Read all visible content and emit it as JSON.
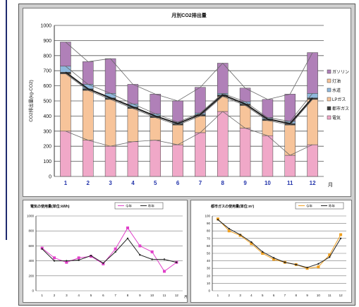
{
  "chart_data": [
    {
      "type": "bar",
      "stacked": true,
      "title": "月別CO2排出量",
      "ylabel": "CO2排出量(kg-CO2)",
      "x_unit": "月",
      "categories": [
        "1",
        "2",
        "3",
        "4",
        "5",
        "6",
        "7",
        "8",
        "9",
        "10",
        "11",
        "12"
      ],
      "ylim": [
        0,
        1000
      ],
      "yticks": [
        0,
        100,
        200,
        300,
        400,
        500,
        600,
        700,
        800,
        900,
        1000
      ],
      "legend_position": "right",
      "series": [
        {
          "name": "電気",
          "color": "#f0a8c8",
          "values": [
            300,
            240,
            200,
            230,
            240,
            210,
            290,
            430,
            320,
            270,
            140,
            210
          ]
        },
        {
          "name": "灯油",
          "color": "#f7c49a",
          "values": [
            380,
            330,
            310,
            220,
            150,
            130,
            110,
            100,
            150,
            100,
            200,
            300
          ]
        },
        {
          "name": "都市ガス",
          "color": "#3a3a3a",
          "values": [
            10,
            10,
            10,
            10,
            10,
            10,
            10,
            10,
            10,
            10,
            10,
            10
          ]
        },
        {
          "name": "LPガス",
          "color": "#f7c49a",
          "values": [
            0,
            0,
            0,
            0,
            0,
            0,
            0,
            0,
            0,
            0,
            0,
            0
          ]
        },
        {
          "name": "水道",
          "color": "#8fb8dc",
          "values": [
            40,
            30,
            30,
            20,
            15,
            10,
            10,
            10,
            15,
            10,
            15,
            30
          ]
        },
        {
          "name": "ガソリン",
          "color": "#b080b8",
          "values": [
            160,
            150,
            230,
            130,
            130,
            140,
            170,
            200,
            90,
            120,
            180,
            270
          ]
        }
      ],
      "legend_order": [
        "ガソリン",
        "灯油",
        "水道",
        "LPガス",
        "都市ガス",
        "電気"
      ]
    },
    {
      "type": "line",
      "title": "電気の使用量(単位:kWh)",
      "legend": [
        "今年",
        "昨年"
      ],
      "x": [
        "1",
        "2",
        "3",
        "4",
        "5",
        "6",
        "7",
        "8",
        "9",
        "10",
        "11",
        "12"
      ],
      "x_unit": "月",
      "ylim": [
        0,
        1000
      ],
      "yticks": [
        0,
        200,
        400,
        600,
        800,
        1000
      ],
      "series": [
        {
          "name": "今年",
          "color": "#e040c8",
          "values": [
            570,
            440,
            380,
            440,
            460,
            360,
            560,
            840,
            600,
            520,
            260,
            380
          ]
        },
        {
          "name": "昨年",
          "color": "#222222",
          "values": [
            560,
            400,
            400,
            410,
            470,
            370,
            520,
            700,
            480,
            420,
            420,
            380
          ]
        }
      ]
    },
    {
      "type": "line",
      "title": "都市ガスの使用量(単位:m³)",
      "legend": [
        "今年",
        "昨年"
      ],
      "x": [
        "1",
        "2",
        "3",
        "4",
        "5",
        "6",
        "7",
        "8",
        "9",
        "10",
        "11",
        "12"
      ],
      "ylim": [
        0,
        100
      ],
      "yticks": [
        0,
        10,
        20,
        30,
        40,
        50,
        60,
        70,
        80,
        90,
        100
      ],
      "series": [
        {
          "name": "今年",
          "color": "#f0a020",
          "values": [
            96,
            80,
            74,
            63,
            50,
            42,
            38,
            35,
            30,
            32,
            48,
            75
          ]
        },
        {
          "name": "昨年",
          "color": "#222222",
          "values": [
            95,
            83,
            75,
            65,
            52,
            44,
            38,
            35,
            31,
            36,
            45,
            70
          ]
        }
      ]
    }
  ]
}
